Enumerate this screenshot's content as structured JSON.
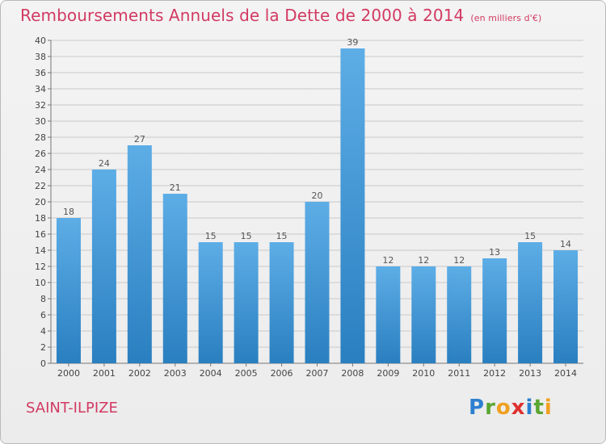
{
  "title": "Remboursements Annuels de la Dette de 2000 à 2014",
  "unit_note": "(en milliers d'€)",
  "place_name": "SAINT-ILPIZE",
  "logo": {
    "text": "Proxiti",
    "letters": [
      {
        "ch": "P",
        "color": "#2e7fd0"
      },
      {
        "ch": "r",
        "color": "#5aa632"
      },
      {
        "ch": "o",
        "color": "#f0a020"
      },
      {
        "ch": "x",
        "color": "#e03030"
      },
      {
        "ch": "i",
        "color": "#2e7fd0"
      },
      {
        "ch": "t",
        "color": "#5aa632"
      },
      {
        "ch": "i",
        "color": "#f0a020"
      }
    ]
  },
  "colors": {
    "bar_top": "#5dade6",
    "bar_bottom": "#2a7fc0",
    "grid": "#c9c9c9",
    "title": "#d23a62"
  },
  "chart_data": {
    "type": "bar",
    "title": "Remboursements Annuels de la Dette de 2000 à 2014",
    "subtitle": "(en milliers d'€)",
    "xlabel": "",
    "ylabel": "",
    "categories": [
      "2000",
      "2001",
      "2002",
      "2003",
      "2004",
      "2005",
      "2006",
      "2007",
      "2008",
      "2009",
      "2010",
      "2011",
      "2012",
      "2013",
      "2014"
    ],
    "values": [
      18,
      24,
      27,
      21,
      15,
      15,
      15,
      20,
      39,
      12,
      12,
      12,
      13,
      15,
      14
    ],
    "ylim": [
      0,
      40
    ],
    "yticks": [
      0,
      2,
      4,
      6,
      8,
      10,
      12,
      14,
      16,
      18,
      20,
      22,
      24,
      26,
      28,
      30,
      32,
      34,
      36,
      38,
      40
    ],
    "grid": true,
    "legend": "none"
  }
}
